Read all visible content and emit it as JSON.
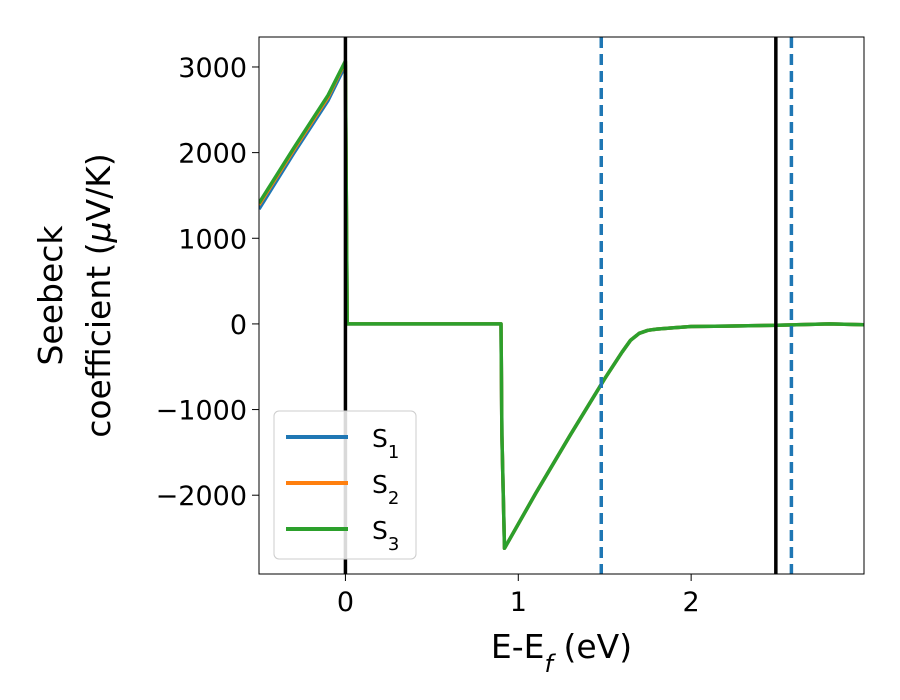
{
  "chart_data": {
    "type": "line",
    "xlabel": {
      "main": "E-E",
      "sub": "f",
      "tail": " (eV)"
    },
    "ylabel": {
      "line1": "Seebeck",
      "line2a": "coefficient  (",
      "mu": "μ",
      "line2b": "V/K)"
    },
    "xlim": [
      -0.5,
      3.0
    ],
    "ylim": [
      -2920,
      3350
    ],
    "xticks": [
      0,
      1,
      2
    ],
    "xtick_labels": [
      "0",
      "1",
      "2"
    ],
    "yticks": [
      3000,
      2000,
      1000,
      0,
      -1000,
      -2000
    ],
    "ytick_labels": [
      "3000",
      "2000",
      "1000",
      "0",
      "−1000",
      "−2000"
    ],
    "grid": false,
    "legend_position": "lower-left",
    "series": [
      {
        "name": "S1",
        "label_main": "S",
        "label_sub": "1",
        "color": "#1f77b4",
        "x": [
          -0.5,
          -0.3,
          -0.1,
          0.0,
          0.005,
          0.01,
          0.5,
          0.9,
          0.905,
          0.92,
          1.1,
          1.3,
          1.5,
          1.6,
          1.65,
          1.7,
          1.75,
          1.8,
          1.9,
          2.0,
          2.2,
          2.5,
          2.8,
          3.0
        ],
        "y": [
          1340,
          1990,
          2610,
          3020,
          1500,
          0,
          0,
          0,
          -1300,
          -2620,
          -1980,
          -1300,
          -640,
          -330,
          -190,
          -110,
          -75,
          -60,
          -45,
          -30,
          -25,
          -15,
          0,
          -10
        ]
      },
      {
        "name": "S2",
        "label_main": "S",
        "label_sub": "2",
        "color": "#ff7f0e",
        "x": [
          -0.5,
          -0.3,
          -0.1,
          0.0,
          0.005,
          0.01,
          0.5,
          0.9,
          0.905,
          0.92,
          1.1,
          1.3,
          1.5,
          1.6,
          1.65,
          1.7,
          1.75,
          1.8,
          1.9,
          2.0,
          2.2,
          2.5,
          2.8,
          3.0
        ],
        "y": [
          1390,
          2030,
          2650,
          3060,
          1500,
          0,
          0,
          0,
          -1300,
          -2620,
          -1980,
          -1300,
          -640,
          -330,
          -190,
          -110,
          -75,
          -60,
          -45,
          -30,
          -25,
          -15,
          0,
          -10
        ]
      },
      {
        "name": "S3",
        "label_main": "S",
        "label_sub": "3",
        "color": "#2ca02c",
        "x": [
          -0.5,
          -0.3,
          -0.1,
          0.0,
          0.005,
          0.01,
          0.5,
          0.9,
          0.905,
          0.92,
          1.1,
          1.3,
          1.5,
          1.6,
          1.65,
          1.7,
          1.75,
          1.8,
          1.9,
          2.0,
          2.2,
          2.5,
          2.8,
          3.0
        ],
        "y": [
          1410,
          2050,
          2670,
          3070,
          1500,
          0,
          0,
          0,
          -1300,
          -2620,
          -1980,
          -1300,
          -640,
          -330,
          -190,
          -110,
          -75,
          -60,
          -45,
          -30,
          -25,
          -15,
          0,
          -10
        ]
      }
    ],
    "vlines": [
      {
        "x": 0.0,
        "color": "#000000",
        "style": "solid"
      },
      {
        "x": 2.49,
        "color": "#000000",
        "style": "solid"
      },
      {
        "x": 1.48,
        "color": "#1f77b4",
        "style": "dashed"
      },
      {
        "x": 2.58,
        "color": "#1f77b4",
        "style": "dashed"
      }
    ]
  }
}
